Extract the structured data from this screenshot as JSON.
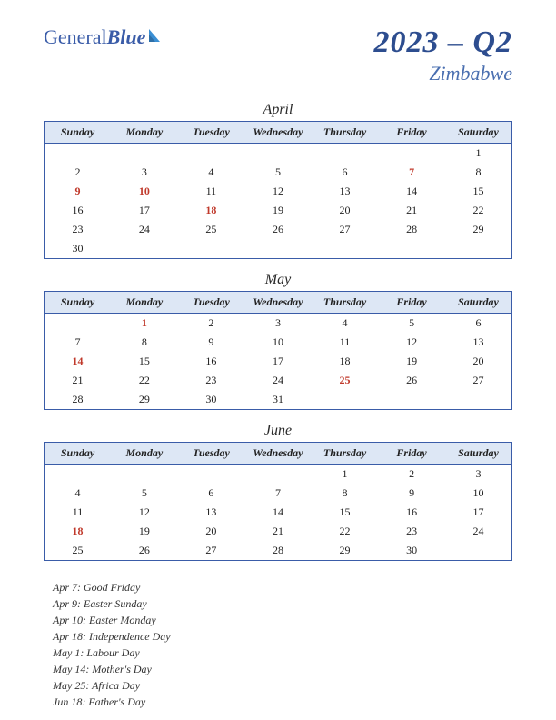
{
  "logo": {
    "part1": "General",
    "part2": "Blue"
  },
  "header": {
    "quarter": "2023 – Q2",
    "country": "Zimbabwe"
  },
  "dayHeaders": [
    "Sunday",
    "Monday",
    "Tuesday",
    "Wednesday",
    "Thursday",
    "Friday",
    "Saturday"
  ],
  "colors": {
    "brand": "#3a5ca8",
    "headerBg": "#dde7f5",
    "holiday": "#c0392b",
    "text": "#222"
  },
  "months": [
    {
      "name": "April",
      "grid": [
        [
          "",
          "",
          "",
          "",
          "",
          "",
          "1"
        ],
        [
          "2",
          "3",
          "4",
          "5",
          "6",
          "7",
          "8"
        ],
        [
          "9",
          "10",
          "11",
          "12",
          "13",
          "14",
          "15"
        ],
        [
          "16",
          "17",
          "18",
          "19",
          "20",
          "21",
          "22"
        ],
        [
          "23",
          "24",
          "25",
          "26",
          "27",
          "28",
          "29"
        ],
        [
          "30",
          "",
          "",
          "",
          "",
          "",
          ""
        ]
      ],
      "holidays": [
        "7",
        "9",
        "10",
        "18"
      ]
    },
    {
      "name": "May",
      "grid": [
        [
          "",
          "1",
          "2",
          "3",
          "4",
          "5",
          "6"
        ],
        [
          "7",
          "8",
          "9",
          "10",
          "11",
          "12",
          "13"
        ],
        [
          "14",
          "15",
          "16",
          "17",
          "18",
          "19",
          "20"
        ],
        [
          "21",
          "22",
          "23",
          "24",
          "25",
          "26",
          "27"
        ],
        [
          "28",
          "29",
          "30",
          "31",
          "",
          "",
          ""
        ]
      ],
      "holidays": [
        "1",
        "14",
        "25"
      ]
    },
    {
      "name": "June",
      "grid": [
        [
          "",
          "",
          "",
          "",
          "1",
          "2",
          "3"
        ],
        [
          "4",
          "5",
          "6",
          "7",
          "8",
          "9",
          "10"
        ],
        [
          "11",
          "12",
          "13",
          "14",
          "15",
          "16",
          "17"
        ],
        [
          "18",
          "19",
          "20",
          "21",
          "22",
          "23",
          "24"
        ],
        [
          "25",
          "26",
          "27",
          "28",
          "29",
          "30",
          ""
        ]
      ],
      "holidays": [
        "18"
      ]
    }
  ],
  "holidayList": [
    "Apr 7: Good Friday",
    "Apr 9: Easter Sunday",
    "Apr 10: Easter Monday",
    "Apr 18: Independence Day",
    "May 1: Labour Day",
    "May 14: Mother's Day",
    "May 25: Africa Day",
    "Jun 18: Father's Day"
  ]
}
